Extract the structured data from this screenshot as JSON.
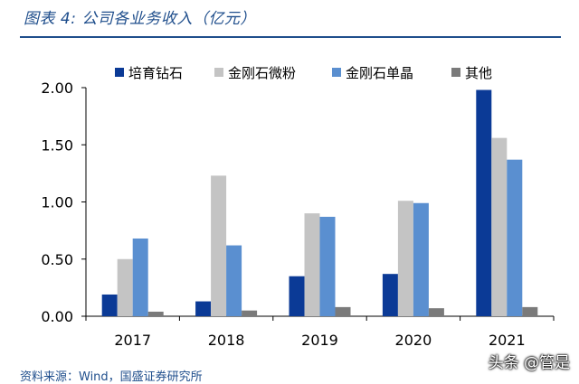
{
  "header": {
    "figure_title": "图表 4:  公司各业务收入（亿元）"
  },
  "footer": {
    "source": "资料来源：Wind，国盛证券研究所",
    "watermark": "头条 @管是"
  },
  "chart_data": {
    "type": "bar",
    "title": "",
    "xlabel": "",
    "ylabel": "",
    "categories": [
      "2017",
      "2018",
      "2019",
      "2020",
      "2021"
    ],
    "ylim": [
      0,
      2
    ],
    "yticks": [
      "0.00",
      "0.50",
      "1.00",
      "1.50",
      "2.00"
    ],
    "grid": false,
    "legend_position": "top",
    "series": [
      {
        "name": "培育钻石",
        "color": "#0b3a96",
        "values": [
          0.19,
          0.13,
          0.35,
          0.37,
          1.98
        ]
      },
      {
        "name": "金刚石微粉",
        "color": "#c4c4c4",
        "values": [
          0.5,
          1.23,
          0.9,
          1.01,
          1.56
        ]
      },
      {
        "name": "金刚石单晶",
        "color": "#5a8fd0",
        "values": [
          0.68,
          0.62,
          0.87,
          0.99,
          1.37
        ]
      },
      {
        "name": "其他",
        "color": "#7a7a7a",
        "values": [
          0.04,
          0.05,
          0.08,
          0.07,
          0.08
        ]
      }
    ]
  }
}
